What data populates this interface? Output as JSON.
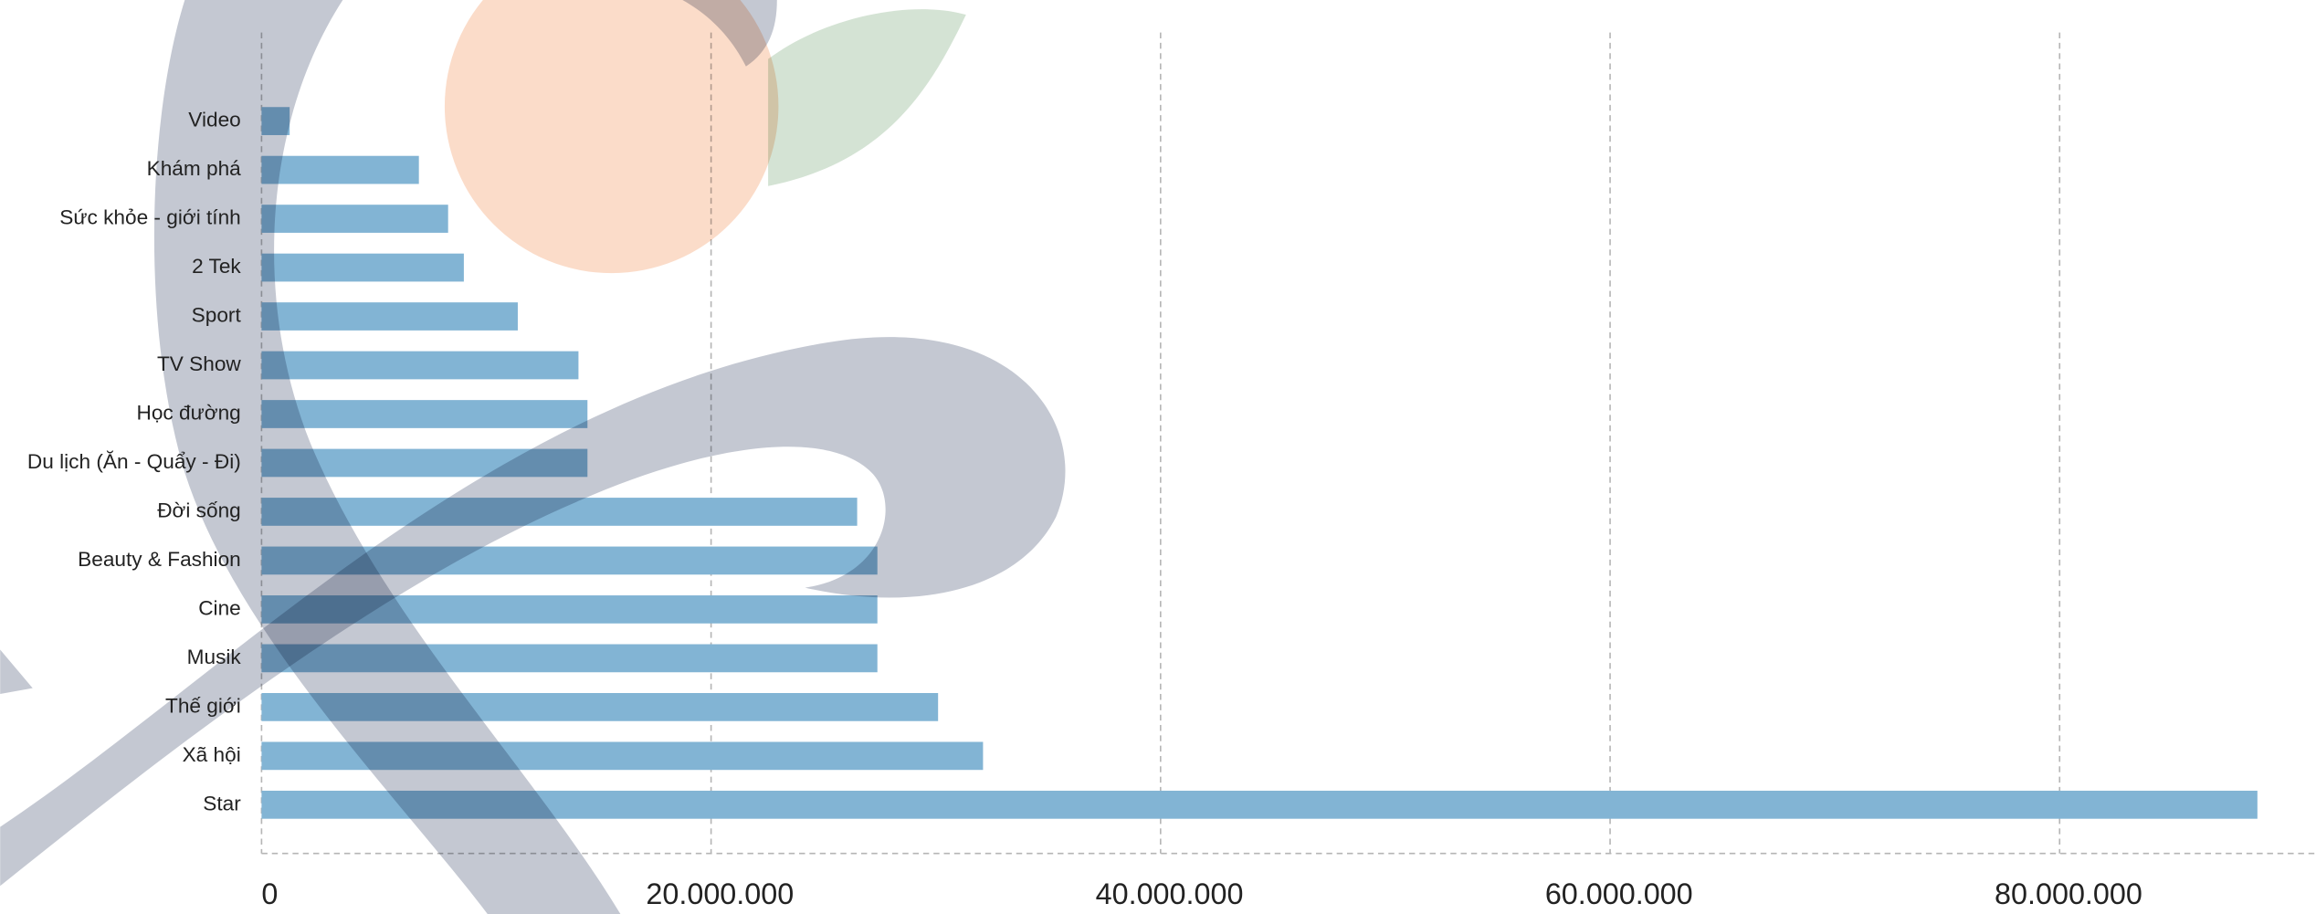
{
  "chart_data": {
    "type": "bar",
    "orientation": "horizontal",
    "categories": [
      "Video",
      "Khám phá",
      "Sức khỏe - giới tính",
      "2 Tek",
      "Sport",
      "TV Show",
      "Học đường",
      "Du lịch (Ăn - Quẩy - Đi)",
      "Đời sống",
      "Beauty & Fashion",
      "Cine",
      "Musik",
      "Thế giới",
      "Xã hội",
      "Star"
    ],
    "values": [
      1250000,
      7000000,
      8300000,
      9000000,
      11400000,
      14100000,
      14500000,
      14500000,
      26500000,
      27400000,
      27400000,
      27400000,
      30100000,
      32100000,
      88800000
    ],
    "color": "#82b4d4",
    "xlim": [
      0,
      91400000
    ],
    "xticks": [
      0,
      {
        "value": 20000000,
        "label": "20.000.000"
      },
      {
        "value": 40000000,
        "label": "40.000.000"
      },
      {
        "value": 60000000,
        "label": "60.000.000"
      },
      {
        "value": 80000000,
        "label": "80.000.000"
      }
    ],
    "grid": true
  }
}
